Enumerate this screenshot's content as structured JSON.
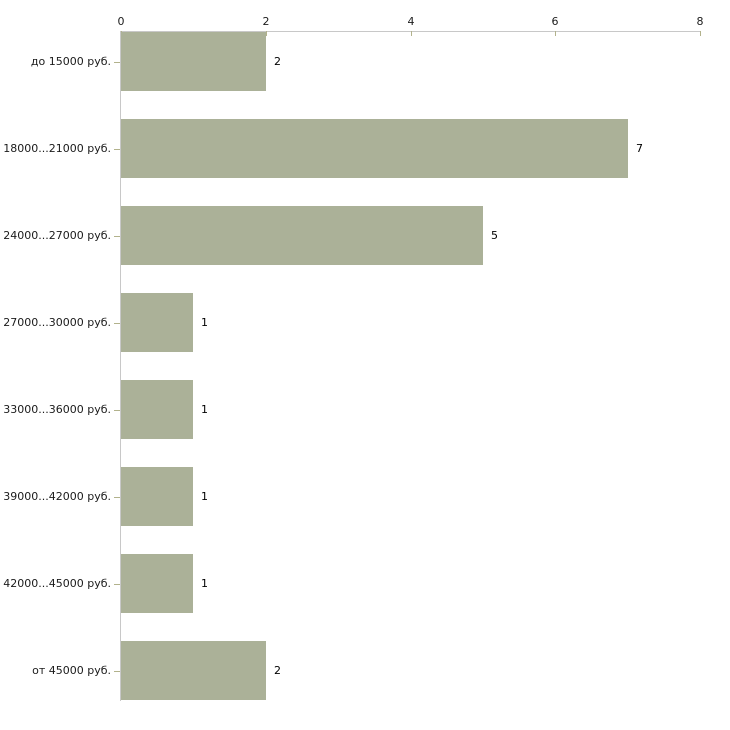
{
  "chart_data": {
    "type": "bar",
    "orientation": "horizontal",
    "title": "",
    "xlabel": "",
    "ylabel": "",
    "categories": [
      "до 15000 руб.",
      "18000...21000 руб.",
      "24000...27000 руб.",
      "27000...30000 руб.",
      "33000...36000 руб.",
      "39000...42000 руб.",
      "42000...45000 руб.",
      "от 45000 руб."
    ],
    "values": [
      2,
      7,
      5,
      1,
      1,
      1,
      1,
      2
    ],
    "value_labels": [
      "2",
      "7",
      "5",
      "1",
      "1",
      "1",
      "1",
      "2"
    ],
    "xticks": [
      0,
      2,
      4,
      6,
      8
    ],
    "xlim": [
      0,
      8
    ],
    "grid": "off",
    "legend": "none",
    "axis_position": "top",
    "colors": {
      "bar": "#abb198",
      "axis_line": "#c8c8c8",
      "tick_mark": "#b2b28c",
      "text": "#1b1b1b",
      "background": "#ffffff"
    }
  }
}
